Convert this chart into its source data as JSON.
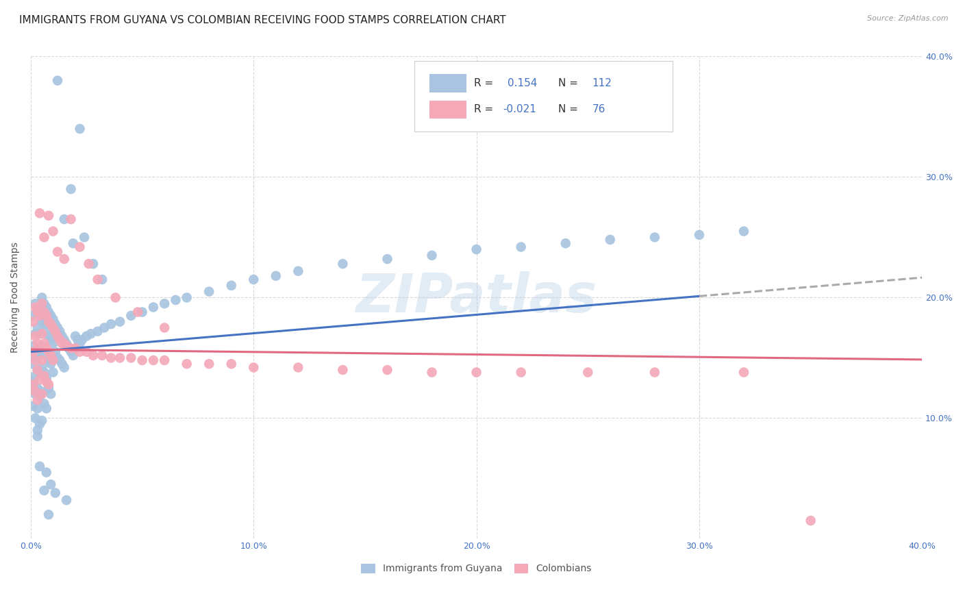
{
  "title": "IMMIGRANTS FROM GUYANA VS COLOMBIAN RECEIVING FOOD STAMPS CORRELATION CHART",
  "source": "Source: ZipAtlas.com",
  "ylabel": "Receiving Food Stamps",
  "xlim": [
    0.0,
    0.4
  ],
  "ylim": [
    0.0,
    0.4
  ],
  "xtick_labels": [
    "0.0%",
    "10.0%",
    "20.0%",
    "30.0%",
    "40.0%"
  ],
  "xtick_vals": [
    0.0,
    0.1,
    0.2,
    0.3,
    0.4
  ],
  "ytick_labels": [
    "10.0%",
    "20.0%",
    "30.0%",
    "40.0%"
  ],
  "ytick_vals": [
    0.1,
    0.2,
    0.3,
    0.4
  ],
  "guyana_color": "#a8c4e0",
  "colombian_color": "#f4a8b8",
  "guyana_line_color": "#4472c4",
  "colombian_line_color": "#e06880",
  "guyana_ext_color": "#aaaaaa",
  "R_guyana": 0.154,
  "N_guyana": 112,
  "R_colombian": -0.021,
  "N_colombian": 76,
  "watermark": "ZIPatlas",
  "background_color": "#ffffff",
  "grid_color": "#d8d8d8",
  "title_fontsize": 11,
  "axis_label_fontsize": 10,
  "tick_fontsize": 9,
  "legend_fontsize": 11,
  "guyana_x": [
    0.001,
    0.001,
    0.001,
    0.001,
    0.001,
    0.002,
    0.002,
    0.002,
    0.002,
    0.002,
    0.002,
    0.003,
    0.003,
    0.003,
    0.003,
    0.003,
    0.003,
    0.003,
    0.004,
    0.004,
    0.004,
    0.004,
    0.004,
    0.004,
    0.005,
    0.005,
    0.005,
    0.005,
    0.005,
    0.005,
    0.006,
    0.006,
    0.006,
    0.006,
    0.006,
    0.007,
    0.007,
    0.007,
    0.007,
    0.007,
    0.008,
    0.008,
    0.008,
    0.008,
    0.009,
    0.009,
    0.009,
    0.009,
    0.01,
    0.01,
    0.01,
    0.011,
    0.011,
    0.012,
    0.012,
    0.013,
    0.013,
    0.014,
    0.014,
    0.015,
    0.015,
    0.016,
    0.017,
    0.018,
    0.019,
    0.02,
    0.021,
    0.022,
    0.023,
    0.025,
    0.027,
    0.03,
    0.033,
    0.036,
    0.04,
    0.045,
    0.05,
    0.055,
    0.06,
    0.065,
    0.07,
    0.08,
    0.09,
    0.1,
    0.11,
    0.12,
    0.14,
    0.16,
    0.18,
    0.2,
    0.22,
    0.24,
    0.26,
    0.28,
    0.3,
    0.32,
    0.022,
    0.018,
    0.015,
    0.012,
    0.019,
    0.024,
    0.028,
    0.032,
    0.008,
    0.006,
    0.004,
    0.003,
    0.007,
    0.009,
    0.011,
    0.016
  ],
  "guyana_y": [
    0.185,
    0.16,
    0.145,
    0.13,
    0.11,
    0.195,
    0.17,
    0.15,
    0.135,
    0.12,
    0.1,
    0.19,
    0.175,
    0.155,
    0.14,
    0.125,
    0.108,
    0.09,
    0.185,
    0.17,
    0.152,
    0.138,
    0.118,
    0.095,
    0.2,
    0.18,
    0.16,
    0.142,
    0.122,
    0.098,
    0.195,
    0.178,
    0.158,
    0.138,
    0.112,
    0.192,
    0.172,
    0.153,
    0.133,
    0.108,
    0.188,
    0.168,
    0.148,
    0.125,
    0.185,
    0.165,
    0.145,
    0.12,
    0.182,
    0.162,
    0.138,
    0.178,
    0.155,
    0.175,
    0.15,
    0.172,
    0.148,
    0.168,
    0.145,
    0.165,
    0.142,
    0.162,
    0.158,
    0.155,
    0.152,
    0.168,
    0.165,
    0.162,
    0.165,
    0.168,
    0.17,
    0.172,
    0.175,
    0.178,
    0.18,
    0.185,
    0.188,
    0.192,
    0.195,
    0.198,
    0.2,
    0.205,
    0.21,
    0.215,
    0.218,
    0.222,
    0.228,
    0.232,
    0.235,
    0.24,
    0.242,
    0.245,
    0.248,
    0.25,
    0.252,
    0.255,
    0.34,
    0.29,
    0.265,
    0.38,
    0.245,
    0.25,
    0.228,
    0.215,
    0.02,
    0.04,
    0.06,
    0.085,
    0.055,
    0.045,
    0.038,
    0.032
  ],
  "colombian_x": [
    0.001,
    0.001,
    0.001,
    0.002,
    0.002,
    0.002,
    0.002,
    0.003,
    0.003,
    0.003,
    0.003,
    0.004,
    0.004,
    0.004,
    0.005,
    0.005,
    0.005,
    0.005,
    0.006,
    0.006,
    0.006,
    0.007,
    0.007,
    0.007,
    0.008,
    0.008,
    0.008,
    0.009,
    0.009,
    0.01,
    0.01,
    0.011,
    0.012,
    0.013,
    0.014,
    0.015,
    0.016,
    0.018,
    0.02,
    0.022,
    0.025,
    0.028,
    0.032,
    0.036,
    0.04,
    0.045,
    0.05,
    0.055,
    0.06,
    0.07,
    0.08,
    0.09,
    0.1,
    0.12,
    0.14,
    0.16,
    0.18,
    0.2,
    0.22,
    0.25,
    0.28,
    0.32,
    0.35,
    0.004,
    0.006,
    0.008,
    0.01,
    0.012,
    0.015,
    0.018,
    0.022,
    0.026,
    0.03,
    0.038,
    0.048,
    0.06
  ],
  "colombian_y": [
    0.18,
    0.155,
    0.128,
    0.192,
    0.168,
    0.148,
    0.122,
    0.188,
    0.162,
    0.14,
    0.115,
    0.185,
    0.158,
    0.132,
    0.195,
    0.17,
    0.148,
    0.12,
    0.188,
    0.162,
    0.135,
    0.185,
    0.158,
    0.13,
    0.18,
    0.155,
    0.128,
    0.178,
    0.152,
    0.175,
    0.148,
    0.172,
    0.168,
    0.165,
    0.162,
    0.162,
    0.16,
    0.158,
    0.158,
    0.155,
    0.155,
    0.152,
    0.152,
    0.15,
    0.15,
    0.15,
    0.148,
    0.148,
    0.148,
    0.145,
    0.145,
    0.145,
    0.142,
    0.142,
    0.14,
    0.14,
    0.138,
    0.138,
    0.138,
    0.138,
    0.138,
    0.138,
    0.015,
    0.27,
    0.25,
    0.268,
    0.255,
    0.238,
    0.232,
    0.265,
    0.242,
    0.228,
    0.215,
    0.2,
    0.188,
    0.175
  ],
  "trend_x_start": 0.0,
  "trend_x_end": 0.4,
  "guyana_trend_slope": 0.154,
  "guyana_trend_intercept": 0.155,
  "colombian_trend_slope": -0.021,
  "colombian_trend_intercept": 0.157
}
